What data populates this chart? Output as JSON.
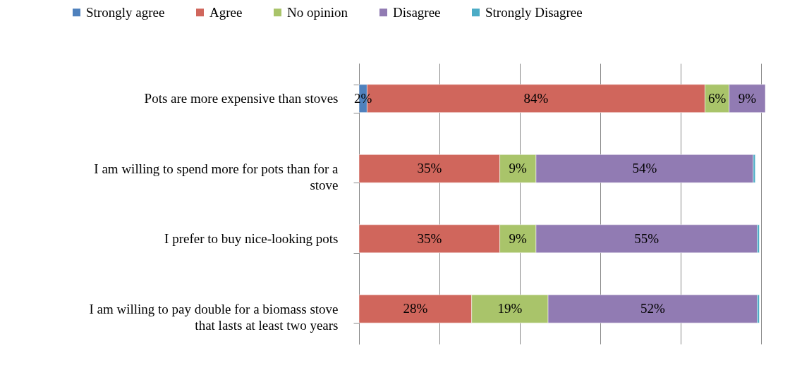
{
  "chart_data": {
    "type": "bar",
    "orientation": "horizontal",
    "stacked": true,
    "categories": [
      "Pots are more expensive than stoves",
      "I am willing to spend more for pots than for a stove",
      "I prefer to buy nice-looking pots",
      "I am willing to pay double for a biomass stove that lasts at least two years"
    ],
    "series": [
      {
        "name": "Strongly agree",
        "color": "#4f81bd",
        "values": [
          2,
          null,
          null,
          null
        ],
        "value_labels": [
          "2%",
          null,
          null,
          null
        ]
      },
      {
        "name": "Agree",
        "color": "#d0665c",
        "values": [
          84,
          35,
          35,
          28
        ],
        "value_labels": [
          "84%",
          "35%",
          "35%",
          "28%"
        ]
      },
      {
        "name": "No opinion",
        "color": "#a9c46a",
        "values": [
          6,
          9,
          9,
          19
        ],
        "value_labels": [
          "6%",
          "9%",
          "9%",
          "19%"
        ]
      },
      {
        "name": "Disagree",
        "color": "#917bb3",
        "values": [
          9,
          54,
          55,
          52
        ],
        "value_labels": [
          "9%",
          "54%",
          "55%",
          "52%"
        ]
      },
      {
        "name": "Strongly Disagree",
        "color": "#4bacc6",
        "values": [
          null,
          0.5,
          0.5,
          0.5
        ],
        "value_labels": [
          null,
          null,
          null,
          null
        ]
      }
    ],
    "xlim": [
      0,
      101
    ],
    "xticks": [
      {
        "value": 0,
        "label": null
      },
      {
        "value": 20,
        "label": null
      },
      {
        "value": 40,
        "label": null
      },
      {
        "value": 60,
        "label": null
      },
      {
        "value": 80,
        "label": null
      },
      {
        "value": 100,
        "label": null
      }
    ],
    "tick_labels": "y",
    "grid": "x",
    "legend": "top"
  }
}
